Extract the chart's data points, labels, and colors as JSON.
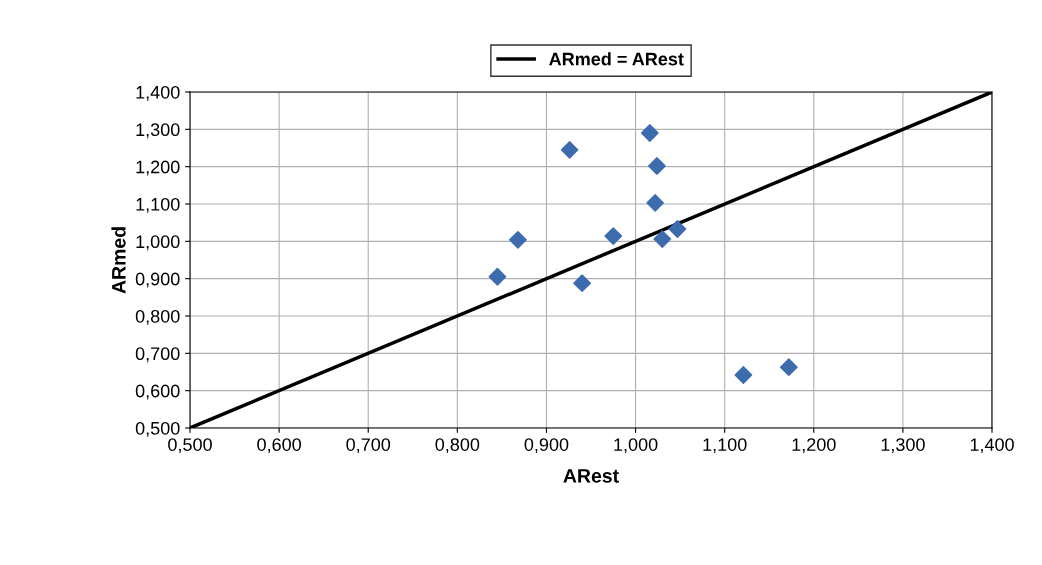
{
  "chart_data": {
    "type": "scatter",
    "xlabel": "ARest",
    "ylabel": "ARmed",
    "series": [
      {
        "color": "#3d6cae",
        "marker": "diamond",
        "x": [
          0.845,
          0.868,
          0.926,
          0.94,
          0.975,
          1.016,
          1.024,
          1.022,
          1.03,
          1.047,
          1.121,
          1.172
        ],
        "values": [
          0.905,
          1.004,
          1.245,
          0.888,
          1.014,
          1.29,
          1.202,
          1.103,
          1.006,
          1.033,
          0.642,
          0.663
        ]
      },
      {
        "type": "line",
        "name": "ARmed = ARest",
        "color": "#000000",
        "marker": "none",
        "line_style": "solid",
        "x": [
          0.5,
          1.4
        ],
        "values": [
          0.5,
          1.4
        ]
      }
    ],
    "xlim": [
      0.5,
      1.4
    ],
    "ylim": [
      0.5,
      1.4
    ],
    "xticks": [
      {
        "value": 0.5,
        "label": "0,500"
      },
      {
        "value": 0.6,
        "label": "0,600"
      },
      {
        "value": 0.7,
        "label": "0,700"
      },
      {
        "value": 0.8,
        "label": "0,800"
      },
      {
        "value": 0.9,
        "label": "0,900"
      },
      {
        "value": 1.0,
        "label": "1,000"
      },
      {
        "value": 1.1,
        "label": "1,100"
      },
      {
        "value": 1.2,
        "label": "1,200"
      },
      {
        "value": 1.3,
        "label": "1,300"
      },
      {
        "value": 1.4,
        "label": "1,400"
      }
    ],
    "yticks": [
      {
        "value": 0.5,
        "label": "0,500"
      },
      {
        "value": 0.6,
        "label": "0,600"
      },
      {
        "value": 0.7,
        "label": "0,700"
      },
      {
        "value": 0.8,
        "label": "0,800"
      },
      {
        "value": 0.9,
        "label": "0,900"
      },
      {
        "value": 1.0,
        "label": "1,000"
      },
      {
        "value": 1.1,
        "label": "1,100"
      },
      {
        "value": 1.2,
        "label": "1,200"
      },
      {
        "value": 1.3,
        "label": "1,300"
      },
      {
        "value": 1.4,
        "label": "1,400"
      }
    ],
    "grid": true,
    "legend": "top"
  }
}
